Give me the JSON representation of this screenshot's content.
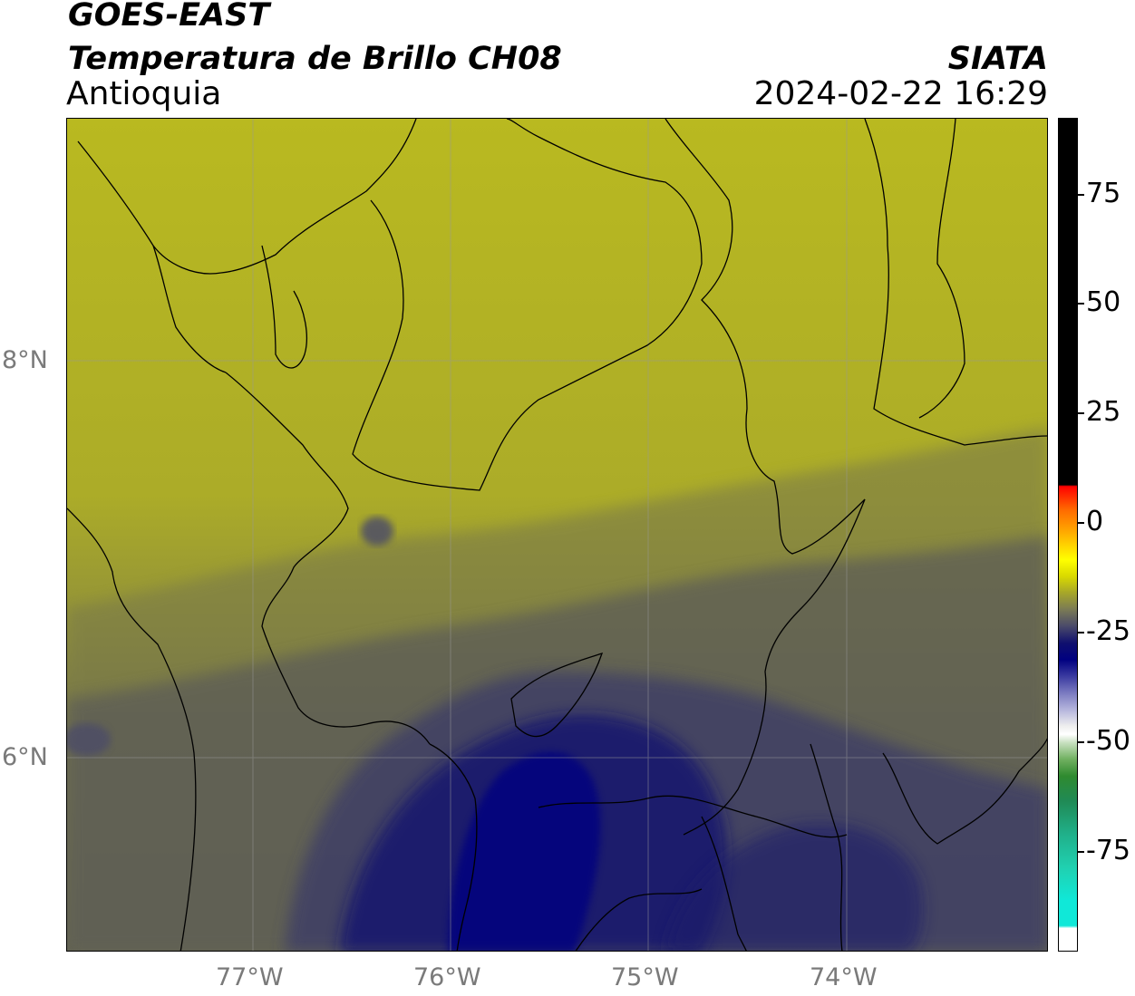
{
  "header": {
    "satellite": "GOES-EAST",
    "product": "Temperatura de Brillo CH08",
    "region": "Antioquia",
    "agency": "SIATA",
    "datetime": "2024-02-22 16:29"
  },
  "map": {
    "lon_labels": [
      "77°W",
      "76°W",
      "75°W",
      "74°W"
    ],
    "lat_labels": [
      "8°N",
      "6°N"
    ],
    "gridlines": true
  },
  "colorbar": {
    "tick_labels": [
      "75",
      "50",
      "25",
      "0",
      "-25",
      "-50",
      "-75"
    ],
    "tick_values": [
      75,
      50,
      25,
      0,
      -25,
      -50,
      -75
    ],
    "colors": {
      "warm": "#000000",
      "red": "#ff0000",
      "yellow": "#ffff00",
      "olive": "#a6a62a",
      "navy": "#000080",
      "white": "#ffffff",
      "green": "#2f8a2f",
      "cyan": "#10e8d8"
    }
  }
}
